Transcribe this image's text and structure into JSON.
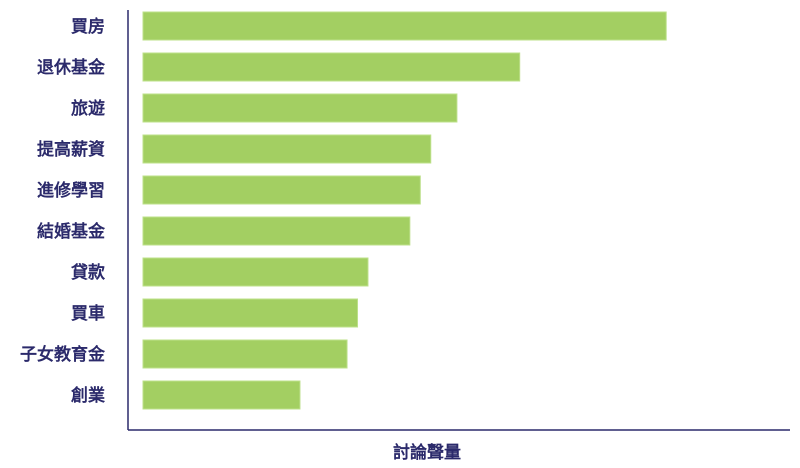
{
  "chart_data": {
    "type": "bar",
    "orientation": "horizontal",
    "x_label": "討論聲量",
    "categories": [
      "買房",
      "退休基金",
      "旅遊",
      "提高薪資",
      "進修學習",
      "結婚基金",
      "貸款",
      "買車",
      "子女教育金",
      "創業"
    ],
    "values": [
      100,
      72,
      60,
      55,
      53,
      51,
      43,
      41,
      39,
      30
    ],
    "color": "#a3cf62",
    "xlim": [
      0,
      125
    ]
  }
}
